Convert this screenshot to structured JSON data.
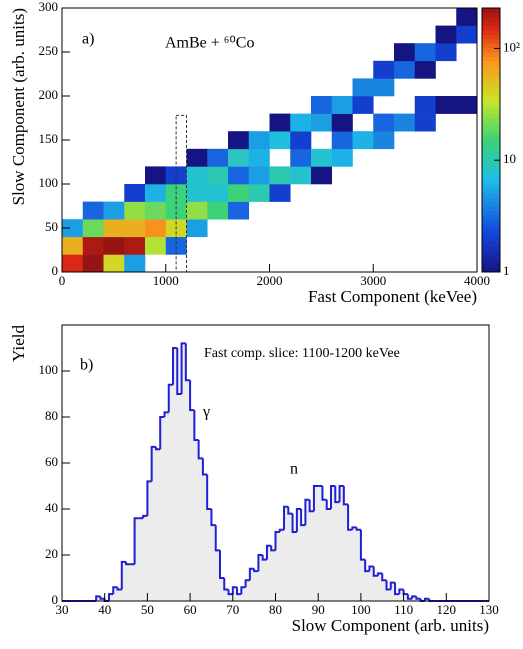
{
  "chart_data": [
    {
      "type": "heatmap",
      "annotations": [
        "a)",
        "AmBe + ⁶⁰Co"
      ],
      "xlabel": "Fast Component (keVee)",
      "ylabel": "Slow Component (arb. units)",
      "xlim": [
        0,
        4000
      ],
      "ylim": [
        0,
        300
      ],
      "xticks": [
        0,
        1000,
        2000,
        3000,
        4000
      ],
      "yticks": [
        0,
        50,
        100,
        150,
        200,
        250,
        300
      ],
      "xbins": [
        0,
        200,
        400,
        600,
        800,
        1000,
        1200,
        1400,
        1600,
        1800,
        2000,
        2200,
        2400,
        2600,
        2800,
        3000,
        3200,
        3400,
        3600,
        3800,
        4000
      ],
      "ybins": [
        0,
        20,
        40,
        60,
        80,
        100,
        120,
        140,
        160,
        180,
        200,
        220,
        240,
        260,
        280,
        300
      ],
      "z": [
        [
          150,
          300,
          40,
          5,
          0,
          0,
          0,
          0,
          0,
          0,
          0,
          0,
          0,
          0,
          0,
          0,
          0,
          0,
          0,
          0
        ],
        [
          60,
          200,
          300,
          200,
          30,
          3,
          0,
          0,
          0,
          0,
          0,
          0,
          0,
          0,
          0,
          0,
          0,
          0,
          0,
          0
        ],
        [
          5,
          20,
          60,
          60,
          80,
          40,
          5,
          0,
          0,
          0,
          0,
          0,
          0,
          0,
          0,
          0,
          0,
          0,
          0,
          0
        ],
        [
          0,
          3,
          5,
          25,
          20,
          15,
          25,
          15,
          3,
          0,
          0,
          0,
          0,
          0,
          0,
          0,
          0,
          0,
          0,
          0
        ],
        [
          0,
          0,
          0,
          2,
          6,
          15,
          8,
          8,
          15,
          10,
          2,
          0,
          0,
          0,
          0,
          0,
          0,
          0,
          0,
          0
        ],
        [
          0,
          0,
          0,
          0,
          1,
          2,
          8,
          10,
          3,
          5,
          10,
          8,
          1,
          0,
          0,
          0,
          0,
          0,
          0,
          0
        ],
        [
          0,
          0,
          0,
          0,
          0,
          0,
          1,
          3,
          9,
          6,
          0,
          3,
          8,
          6,
          0,
          0,
          0,
          0,
          0,
          0
        ],
        [
          0,
          0,
          0,
          0,
          0,
          0,
          0,
          0,
          1,
          5,
          7,
          2,
          0,
          3,
          6,
          4,
          0,
          0,
          0,
          0
        ],
        [
          0,
          0,
          0,
          0,
          0,
          0,
          0,
          0,
          0,
          0,
          1,
          6,
          5,
          1,
          0,
          3,
          4,
          2,
          0,
          0
        ],
        [
          0,
          0,
          0,
          0,
          0,
          0,
          0,
          0,
          0,
          0,
          0,
          0,
          3,
          5,
          2,
          0,
          0,
          2,
          1,
          1
        ],
        [
          0,
          0,
          0,
          0,
          0,
          0,
          0,
          0,
          0,
          0,
          0,
          0,
          0,
          0,
          4,
          4,
          0,
          0,
          0,
          0
        ],
        [
          0,
          0,
          0,
          0,
          0,
          0,
          0,
          0,
          0,
          0,
          0,
          0,
          0,
          0,
          0,
          2,
          3,
          1,
          0,
          0
        ],
        [
          0,
          0,
          0,
          0,
          0,
          0,
          0,
          0,
          0,
          0,
          0,
          0,
          0,
          0,
          0,
          0,
          1,
          3,
          2,
          0
        ],
        [
          0,
          0,
          0,
          0,
          0,
          0,
          0,
          0,
          0,
          0,
          0,
          0,
          0,
          0,
          0,
          0,
          0,
          0,
          1,
          2
        ],
        [
          0,
          0,
          0,
          0,
          0,
          0,
          0,
          0,
          0,
          0,
          0,
          0,
          0,
          0,
          0,
          0,
          0,
          0,
          0,
          1
        ]
      ],
      "log_color_scale": true,
      "zlim": [
        1,
        230
      ],
      "zticks": [
        1,
        10,
        {
          "value": 100,
          "label": "10²"
        }
      ],
      "slice_box": {
        "x": [
          1100,
          1200
        ],
        "y": [
          0,
          178
        ]
      }
    },
    {
      "type": "histogram",
      "annotations": [
        "b)",
        "Fast comp. slice: 1100-1200 keVee",
        "γ",
        "n"
      ],
      "xlabel": "Slow Component (arb. units)",
      "ylabel": "Yield",
      "xlim": [
        30,
        130
      ],
      "ylim": [
        0,
        120
      ],
      "xticks": [
        30,
        40,
        50,
        60,
        70,
        80,
        90,
        100,
        110,
        120,
        130
      ],
      "yticks": [
        0,
        20,
        40,
        60,
        80,
        100
      ],
      "color": "#1f1fd6",
      "bins": [
        30,
        31,
        32,
        33,
        34,
        35,
        36,
        37,
        38,
        39,
        40,
        41,
        42,
        43,
        44,
        45,
        46,
        47,
        48,
        49,
        50,
        51,
        52,
        53,
        54,
        55,
        56,
        57,
        58,
        59,
        60,
        61,
        62,
        63,
        64,
        65,
        66,
        67,
        68,
        69,
        70,
        71,
        72,
        73,
        74,
        75,
        76,
        77,
        78,
        79,
        80,
        81,
        82,
        83,
        84,
        85,
        86,
        87,
        88,
        89,
        90,
        91,
        92,
        93,
        94,
        95,
        96,
        97,
        98,
        99,
        100,
        101,
        102,
        103,
        104,
        105,
        106,
        107,
        108,
        109,
        110,
        111,
        112,
        113,
        114,
        115,
        116,
        117,
        118,
        119,
        120,
        121,
        122,
        123,
        124,
        125,
        126,
        127,
        128,
        129,
        130
      ],
      "values": [
        0,
        0,
        0,
        0,
        0,
        0,
        0,
        0,
        2,
        1,
        0,
        3,
        6,
        5,
        17,
        16,
        16,
        36,
        36,
        37,
        52,
        67,
        66,
        80,
        82,
        94,
        110,
        90,
        112,
        96,
        83,
        70,
        62,
        55,
        40,
        33,
        22,
        10,
        5,
        3,
        6,
        3,
        6,
        9,
        14,
        13,
        20,
        18,
        24,
        22,
        30,
        31,
        41,
        38,
        30,
        40,
        33,
        44,
        39,
        50,
        50,
        44,
        40,
        50,
        43,
        50,
        42,
        31,
        32,
        31,
        18,
        13,
        15,
        11,
        12,
        9,
        5,
        8,
        3,
        5,
        3,
        1,
        2,
        1,
        0,
        1,
        0,
        0,
        0,
        0,
        0,
        0,
        0,
        0,
        0,
        0,
        0,
        0,
        0,
        0
      ]
    }
  ]
}
